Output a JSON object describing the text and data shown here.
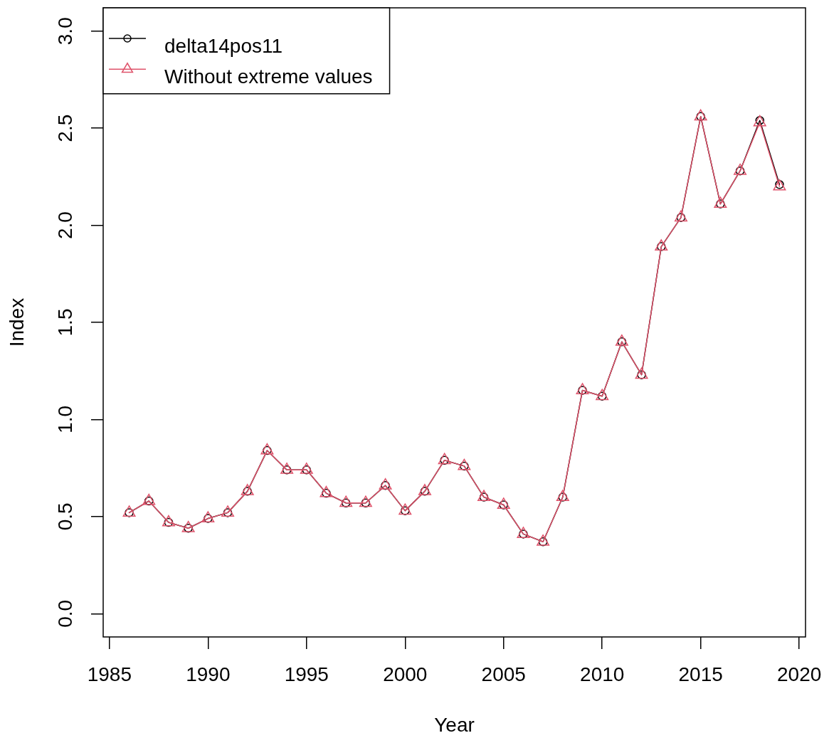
{
  "chart_data": {
    "type": "line",
    "xlabel": "Year",
    "ylabel": "Index",
    "x": [
      1986,
      1987,
      1988,
      1989,
      1990,
      1991,
      1992,
      1993,
      1994,
      1995,
      1996,
      1997,
      1998,
      1999,
      2000,
      2001,
      2002,
      2003,
      2004,
      2005,
      2006,
      2007,
      2008,
      2009,
      2010,
      2011,
      2012,
      2013,
      2014,
      2015,
      2016,
      2017,
      2018,
      2019
    ],
    "series": [
      {
        "name": "delta14pos11",
        "color": "#000000",
        "marker": "circle",
        "values": [
          0.52,
          0.58,
          0.47,
          0.44,
          0.49,
          0.52,
          0.63,
          0.84,
          0.74,
          0.74,
          0.62,
          0.57,
          0.57,
          0.66,
          0.53,
          0.63,
          0.79,
          0.76,
          0.6,
          0.56,
          0.41,
          0.37,
          0.6,
          1.15,
          1.12,
          1.4,
          1.23,
          1.89,
          2.04,
          2.56,
          2.11,
          2.28,
          2.54,
          2.21
        ]
      },
      {
        "name": "Without extreme values",
        "color": "#df536b",
        "marker": "triangle",
        "values": [
          0.52,
          0.58,
          0.47,
          0.44,
          0.49,
          0.52,
          0.63,
          0.84,
          0.74,
          0.74,
          0.62,
          0.57,
          0.57,
          0.66,
          0.53,
          0.63,
          0.79,
          0.76,
          0.6,
          0.56,
          0.41,
          0.37,
          0.6,
          1.15,
          1.12,
          1.4,
          1.23,
          1.89,
          2.04,
          2.56,
          2.11,
          2.28,
          2.53,
          2.2
        ]
      }
    ],
    "xlim": [
      1984.68,
      2020.32
    ],
    "xticks": [
      1985,
      1990,
      1995,
      2000,
      2005,
      2010,
      2015,
      2020
    ],
    "ylim": [
      -0.12,
      3.12
    ],
    "yticks": [
      {
        "value": 0,
        "label": "0.0"
      },
      {
        "value": 0.5,
        "label": "0.5"
      },
      {
        "value": 1,
        "label": "1.0"
      },
      {
        "value": 1.5,
        "label": "1.5"
      },
      {
        "value": 2,
        "label": "2.0"
      },
      {
        "value": 2.5,
        "label": "2.5"
      },
      {
        "value": 3,
        "label": "3.0"
      }
    ],
    "legend": "top left"
  }
}
